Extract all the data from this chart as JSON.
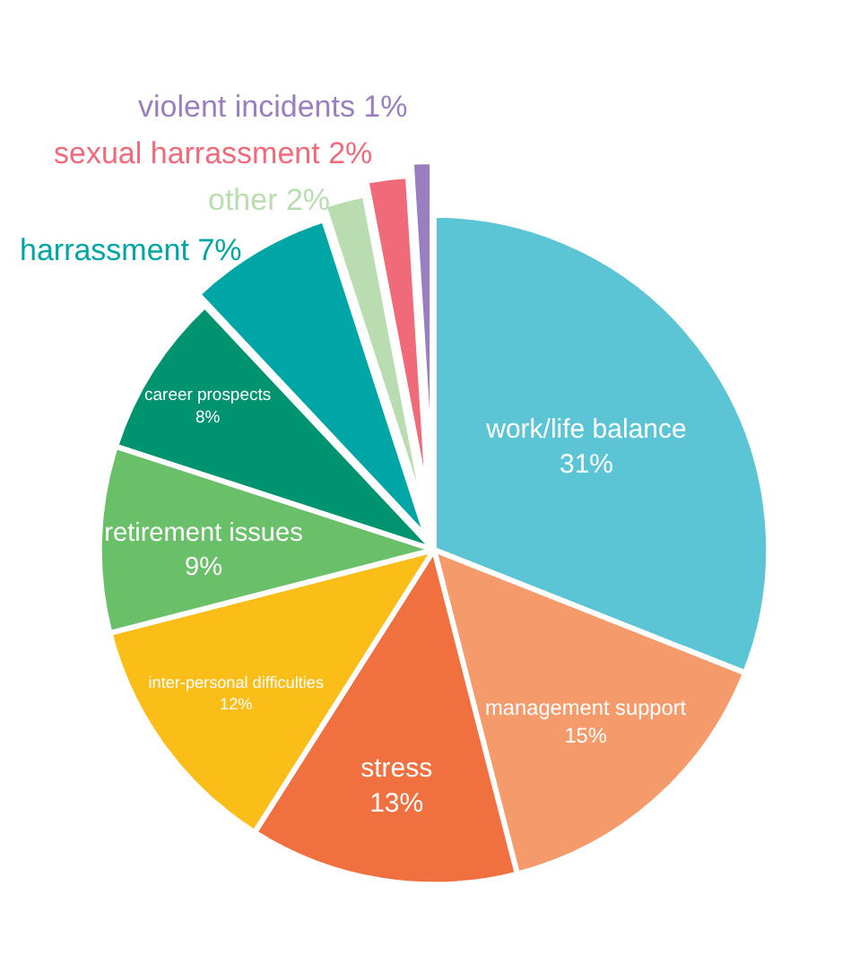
{
  "chart_data": {
    "type": "pie",
    "categories": [
      "work/life balance",
      "management support",
      "stress",
      "inter-personal difficulties",
      "retirement issues",
      "career prospects",
      "harrassment",
      "other",
      "sexual harrassment",
      "violent incidents"
    ],
    "values": [
      31,
      15,
      13,
      12,
      9,
      8,
      7,
      2,
      2,
      1
    ],
    "value_labels": [
      "31%",
      "15%",
      "13%",
      "12%",
      "9%",
      "8%",
      "7%",
      "2%",
      "2%",
      "1%"
    ],
    "colors": [
      "#5bc5d5",
      "#f59a6b",
      "#f07040",
      "#fbbd17",
      "#6abf69",
      "#009370",
      "#00a6a6",
      "#b9ddb0",
      "#f06a7a",
      "#9a7fc0"
    ],
    "legend": false
  }
}
